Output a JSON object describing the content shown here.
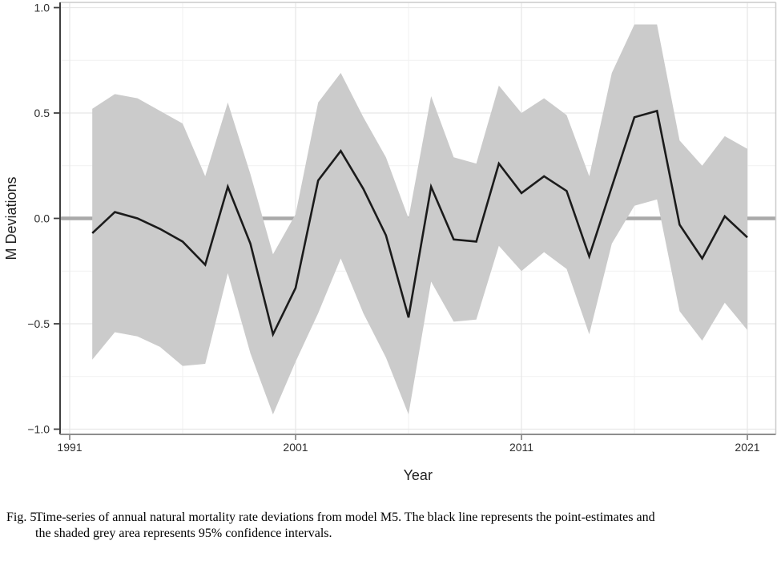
{
  "figure": {
    "caption_label": "Fig. 5",
    "caption_line1": "Time-series of annual natural mortality rate deviations from model M5. The black line represents the point-estimates and",
    "caption_line2": "the shaded grey area represents 95% confidence intervals."
  },
  "chart_data": {
    "type": "line",
    "title": "",
    "xlabel": "Year",
    "ylabel": "M Deviations",
    "xlim": [
      1990.6,
      2022.3
    ],
    "ylim": [
      -1.02,
      1.02
    ],
    "grid": true,
    "legend": false,
    "zero_reference_line": 0.0,
    "x_ticks": [
      {
        "year": 1991,
        "label": "1991"
      },
      {
        "year": 2001,
        "label": "2001"
      },
      {
        "year": 2011,
        "label": "2011"
      },
      {
        "year": 2021,
        "label": "2021"
      }
    ],
    "x_minor_ticks": [
      1996,
      2006,
      2016
    ],
    "y_ticks": [
      {
        "value": 1.0,
        "label": "1.0"
      },
      {
        "value": 0.5,
        "label": "0.5"
      },
      {
        "value": 0.0,
        "label": "0.0"
      },
      {
        "value": -0.5,
        "label": "−0.5"
      },
      {
        "value": -1.0,
        "label": "−1.0"
      }
    ],
    "y_minor_ticks": [
      0.75,
      0.25,
      -0.25,
      -0.75
    ],
    "years": [
      1992,
      1993,
      1994,
      1995,
      1996,
      1997,
      1998,
      1999,
      2000,
      2001,
      2002,
      2003,
      2004,
      2005,
      2006,
      2007,
      2008,
      2009,
      2010,
      2011,
      2012,
      2013,
      2014,
      2015,
      2016,
      2017,
      2018,
      2019,
      2020,
      2021
    ],
    "series": [
      {
        "name": "point_estimate",
        "values": [
          -0.07,
          0.03,
          0.0,
          -0.05,
          -0.11,
          -0.22,
          0.15,
          -0.12,
          -0.55,
          -0.33,
          0.18,
          0.32,
          0.14,
          -0.08,
          -0.47,
          0.15,
          -0.1,
          -0.11,
          0.26,
          0.12,
          0.2,
          0.13,
          -0.18,
          0.15,
          0.48,
          0.51,
          -0.03,
          -0.19,
          0.01,
          -0.09
        ]
      },
      {
        "name": "ci95_upper",
        "values": [
          0.52,
          0.59,
          0.57,
          0.51,
          0.45,
          0.2,
          0.55,
          0.21,
          -0.17,
          0.02,
          0.55,
          0.69,
          0.48,
          0.29,
          0.0,
          0.58,
          0.29,
          0.26,
          0.63,
          0.5,
          0.57,
          0.49,
          0.2,
          0.69,
          0.92,
          0.92,
          0.37,
          0.25,
          0.39,
          0.33
        ]
      },
      {
        "name": "ci95_lower",
        "values": [
          -0.67,
          -0.54,
          -0.56,
          -0.61,
          -0.7,
          -0.69,
          -0.26,
          -0.64,
          -0.93,
          -0.68,
          -0.45,
          -0.19,
          -0.45,
          -0.66,
          -0.93,
          -0.3,
          -0.49,
          -0.48,
          -0.13,
          -0.25,
          -0.16,
          -0.24,
          -0.55,
          -0.12,
          0.06,
          0.09,
          -0.44,
          -0.58,
          -0.4,
          -0.53
        ]
      }
    ],
    "colors": {
      "estimate_line": "#1b1b1b",
      "confidence_band": "#cbcbcb",
      "zero_line": "#a9a9a9",
      "grid_major": "#e7e7e7",
      "grid_minor": "#f1f1f1",
      "axis_left": "#3f3f3f",
      "axis_bottom": "#8e8e8e",
      "border_light": "#cccccc",
      "tick_text": "#2e2e2e",
      "title_text": "#1f1f1f"
    }
  }
}
